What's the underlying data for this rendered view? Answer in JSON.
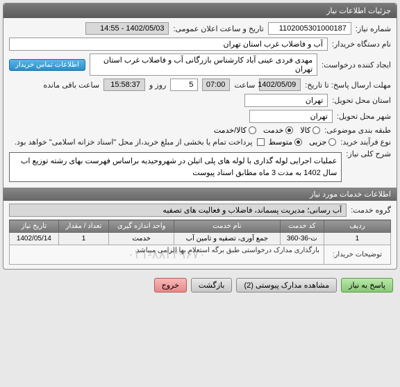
{
  "panel_title": "جزئیات اطلاعات نیاز",
  "fields": {
    "need_no_label": "شماره نیاز:",
    "need_no": "1102005301000187",
    "announce_label": "تاریخ و ساعت اعلان عمومی:",
    "announce_value": "1402/05/03 - 14:55",
    "buyer_label": "نام دستگاه خریدار:",
    "buyer_value": "آب و فاضلاب غرب استان تهران",
    "requester_label": "ایجاد کننده درخواست:",
    "requester_value": "مهدی فردی عینی آباد کارشناس بازرگانی آب و فاضلاب غرب استان تهران",
    "contact_btn": "اطلاعات تماس خریدار",
    "deadline_label": "مهلت ارسال پاسخ: تا تاریخ:",
    "deadline_date": "1402/05/09",
    "time_label": "ساعت",
    "deadline_time": "07:00",
    "days_value": "5",
    "days_label": "روز و",
    "remain_time": "15:58:37",
    "remain_label": "ساعت باقی مانده",
    "province_label": "استان محل تحویل:",
    "province_value": "تهران",
    "city_label": "شهر محل تحویل:",
    "city_value": "تهران",
    "category_label": "طبقه بندی موضوعی:",
    "cat_goods": "کالا",
    "cat_service": "خدمت",
    "cat_both": "کالا/خدمت",
    "process_label": "نوع فرآیند خرید:",
    "proc_partial": "جزیی",
    "proc_medium": "متوسط",
    "pay_note": "پرداخت تمام یا بخشی از مبلغ خرید،از محل \"اسناد خزانه اسلامی\" خواهد بود.",
    "desc_label": "شرح کلی نیاز:",
    "desc_text": "عملیات اجرایی لوله گذاری با لوله های پلی اتیلن در شهروحیدیه براساس فهرست بهای رشته توزیع اب سال 1402 به مدت 3 ماه مطابق اسناد پیوست",
    "services_header": "اطلاعات خدمات مورد نیاز",
    "group_label": "گروه خدمت:",
    "group_value": "آب رسانی؛ مدیریت پسماند، فاضلاب و فعالیت های تصفیه"
  },
  "table": {
    "headers": [
      "ردیف",
      "کد خدمت",
      "نام خدمت",
      "واحد اندازه گیری",
      "تعداد / مقدار",
      "تاریخ نیاز"
    ],
    "row": [
      "1",
      "ت-36-360",
      "جمع آوری، تصفیه و تامین آب",
      "خدمت",
      "1",
      "1402/05/14"
    ]
  },
  "buyer_note_label": "توضیحات خریدار:",
  "buyer_note": "بارگذاری مدارک درخواستی طبق برگه استعلام بها الزامی میباشد",
  "watermark": "۰۲۱-۸۸۲۴۹۶۷۰",
  "buttons": {
    "respond": "پاسخ به نیاز",
    "attachments": "مشاهده مدارک پیوستی (2)",
    "return": "بازگشت",
    "exit": "خروج"
  }
}
